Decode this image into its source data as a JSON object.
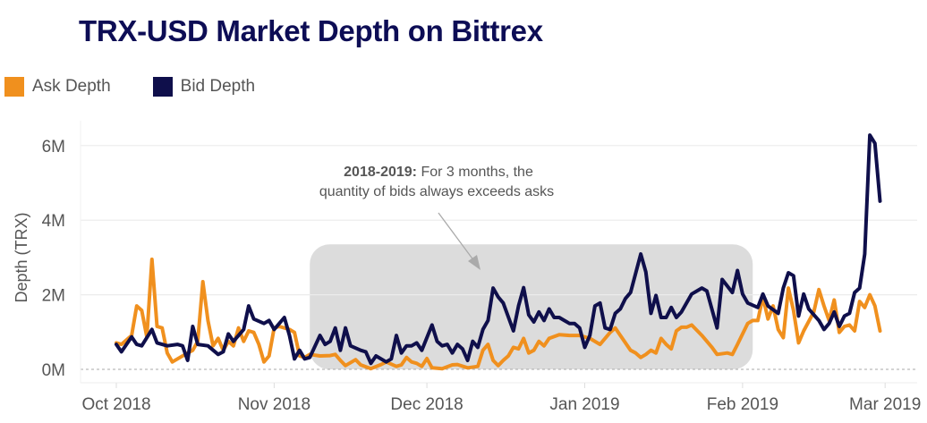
{
  "chart_data": {
    "type": "line",
    "title": "TRX-USD Market Depth on Bittrex",
    "xlabel": "",
    "ylabel": "Depth (TRX)",
    "ylim": [
      0,
      6.5
    ],
    "yunit": "M",
    "yticks": [
      0,
      2,
      4,
      6
    ],
    "ytick_labels": [
      "0M",
      "2M",
      "4M",
      "6M"
    ],
    "xticks": [
      "2018-10-01",
      "2018-11-01",
      "2018-12-01",
      "2019-01-01",
      "2019-02-01",
      "2019-03-01"
    ],
    "xtick_labels": [
      "Oct 2018",
      "Nov 2018",
      "Dec 2018",
      "Jan 2019",
      "Feb 2019",
      "Mar 2019"
    ],
    "grid": "horizontal",
    "legend_placement": "top-left",
    "annotation": {
      "bold": "2018-2019:",
      "line1": " For 3 months, the",
      "line2": "quantity of bids always exceeds asks",
      "highlight_start": "2018-11-08",
      "highlight_end": "2019-02-03",
      "highlight_top": 3.35
    },
    "series": [
      {
        "name": "Ask Depth",
        "color": "#f0901e",
        "points": [
          [
            "2018-10-01",
            0.71
          ],
          [
            "2018-10-02",
            0.67
          ],
          [
            "2018-10-04",
            0.91
          ],
          [
            "2018-10-05",
            1.7
          ],
          [
            "2018-10-06",
            1.58
          ],
          [
            "2018-10-07",
            0.87
          ],
          [
            "2018-10-08",
            2.95
          ],
          [
            "2018-10-09",
            1.15
          ],
          [
            "2018-10-10",
            1.11
          ],
          [
            "2018-10-11",
            0.44
          ],
          [
            "2018-10-12",
            0.2
          ],
          [
            "2018-10-15",
            0.44
          ],
          [
            "2018-10-16",
            0.51
          ],
          [
            "2018-10-17",
            0.75
          ],
          [
            "2018-10-18",
            2.35
          ],
          [
            "2018-10-19",
            1.31
          ],
          [
            "2018-10-20",
            0.63
          ],
          [
            "2018-10-21",
            0.83
          ],
          [
            "2018-10-22",
            0.51
          ],
          [
            "2018-10-23",
            0.75
          ],
          [
            "2018-10-24",
            0.63
          ],
          [
            "2018-10-25",
            1.11
          ],
          [
            "2018-10-26",
            0.75
          ],
          [
            "2018-10-27",
            1.03
          ],
          [
            "2018-10-28",
            0.99
          ],
          [
            "2018-10-29",
            0.67
          ],
          [
            "2018-10-30",
            0.2
          ],
          [
            "2018-10-31",
            0.36
          ],
          [
            "2018-11-01",
            1.11
          ],
          [
            "2018-11-02",
            1.15
          ],
          [
            "2018-11-04",
            1.07
          ],
          [
            "2018-11-05",
            0.99
          ],
          [
            "2018-11-06",
            0.36
          ],
          [
            "2018-11-07",
            0.32
          ],
          [
            "2018-11-08",
            0.4
          ],
          [
            "2018-11-10",
            0.36
          ],
          [
            "2018-11-12",
            0.37
          ],
          [
            "2018-11-13",
            0.4
          ],
          [
            "2018-11-14",
            0.24
          ],
          [
            "2018-11-15",
            0.1
          ],
          [
            "2018-11-17",
            0.26
          ],
          [
            "2018-11-18",
            0.12
          ],
          [
            "2018-11-20",
            0.02
          ],
          [
            "2018-11-22",
            0.13
          ],
          [
            "2018-11-23",
            0.2
          ],
          [
            "2018-11-25",
            0.08
          ],
          [
            "2018-11-26",
            0.12
          ],
          [
            "2018-11-27",
            0.32
          ],
          [
            "2018-11-28",
            0.2
          ],
          [
            "2018-11-29",
            0.16
          ],
          [
            "2018-11-30",
            0.08
          ],
          [
            "2018-12-01",
            0.29
          ],
          [
            "2018-12-02",
            0.04
          ],
          [
            "2018-12-04",
            0.02
          ],
          [
            "2018-12-06",
            0.12
          ],
          [
            "2018-12-07",
            0.13
          ],
          [
            "2018-12-09",
            0.04
          ],
          [
            "2018-12-11",
            0.08
          ],
          [
            "2018-12-12",
            0.51
          ],
          [
            "2018-12-13",
            0.67
          ],
          [
            "2018-12-14",
            0.24
          ],
          [
            "2018-12-15",
            0.1
          ],
          [
            "2018-12-16",
            0.24
          ],
          [
            "2018-12-17",
            0.36
          ],
          [
            "2018-12-18",
            0.59
          ],
          [
            "2018-12-19",
            0.55
          ],
          [
            "2018-12-20",
            0.83
          ],
          [
            "2018-12-21",
            0.44
          ],
          [
            "2018-12-22",
            0.51
          ],
          [
            "2018-12-23",
            0.75
          ],
          [
            "2018-12-24",
            0.63
          ],
          [
            "2018-12-25",
            0.83
          ],
          [
            "2018-12-27",
            0.93
          ],
          [
            "2018-12-29",
            0.91
          ],
          [
            "2018-12-31",
            0.91
          ],
          [
            "2019-01-02",
            0.83
          ],
          [
            "2019-01-04",
            0.67
          ],
          [
            "2019-01-06",
            0.99
          ],
          [
            "2019-01-07",
            1.11
          ],
          [
            "2019-01-08",
            0.91
          ],
          [
            "2019-01-10",
            0.51
          ],
          [
            "2019-01-11",
            0.44
          ],
          [
            "2019-01-12",
            0.32
          ],
          [
            "2019-01-13",
            0.4
          ],
          [
            "2019-01-14",
            0.51
          ],
          [
            "2019-01-15",
            0.44
          ],
          [
            "2019-01-16",
            0.83
          ],
          [
            "2019-01-17",
            0.67
          ],
          [
            "2019-01-18",
            0.55
          ],
          [
            "2019-01-19",
            1.03
          ],
          [
            "2019-01-20",
            1.13
          ],
          [
            "2019-01-21",
            1.13
          ],
          [
            "2019-01-22",
            1.19
          ],
          [
            "2019-01-24",
            0.91
          ],
          [
            "2019-01-26",
            0.59
          ],
          [
            "2019-01-27",
            0.4
          ],
          [
            "2019-01-29",
            0.44
          ],
          [
            "2019-01-30",
            0.4
          ],
          [
            "2019-01-31",
            0.67
          ],
          [
            "2019-02-02",
            1.23
          ],
          [
            "2019-02-03",
            1.31
          ],
          [
            "2019-02-04",
            1.31
          ],
          [
            "2019-02-05",
            1.94
          ],
          [
            "2019-02-06",
            1.35
          ],
          [
            "2019-02-07",
            1.7
          ],
          [
            "2019-02-08",
            1.07
          ],
          [
            "2019-02-09",
            0.85
          ],
          [
            "2019-02-10",
            2.18
          ],
          [
            "2019-02-11",
            1.58
          ],
          [
            "2019-02-12",
            0.71
          ],
          [
            "2019-02-13",
            1.03
          ],
          [
            "2019-02-15",
            1.54
          ],
          [
            "2019-02-16",
            2.14
          ],
          [
            "2019-02-17",
            1.7
          ],
          [
            "2019-02-18",
            1.31
          ],
          [
            "2019-02-19",
            1.86
          ],
          [
            "2019-02-20",
            0.99
          ],
          [
            "2019-02-21",
            1.15
          ],
          [
            "2019-02-22",
            1.19
          ],
          [
            "2019-02-23",
            1.03
          ],
          [
            "2019-02-24",
            1.82
          ],
          [
            "2019-02-25",
            1.66
          ],
          [
            "2019-02-26",
            2.0
          ],
          [
            "2019-02-27",
            1.7
          ],
          [
            "2019-02-28",
            1.03
          ]
        ]
      },
      {
        "name": "Bid Depth",
        "color": "#0f0f4b",
        "points": [
          [
            "2018-10-01",
            0.67
          ],
          [
            "2018-10-02",
            0.47
          ],
          [
            "2018-10-04",
            0.87
          ],
          [
            "2018-10-05",
            0.67
          ],
          [
            "2018-10-06",
            0.63
          ],
          [
            "2018-10-08",
            1.07
          ],
          [
            "2018-10-09",
            0.71
          ],
          [
            "2018-10-11",
            0.63
          ],
          [
            "2018-10-13",
            0.67
          ],
          [
            "2018-10-14",
            0.63
          ],
          [
            "2018-10-15",
            0.24
          ],
          [
            "2018-10-16",
            1.15
          ],
          [
            "2018-10-17",
            0.67
          ],
          [
            "2018-10-19",
            0.63
          ],
          [
            "2018-10-21",
            0.4
          ],
          [
            "2018-10-22",
            0.47
          ],
          [
            "2018-10-23",
            0.95
          ],
          [
            "2018-10-24",
            0.75
          ],
          [
            "2018-10-26",
            1.07
          ],
          [
            "2018-10-27",
            1.7
          ],
          [
            "2018-10-28",
            1.35
          ],
          [
            "2018-10-30",
            1.23
          ],
          [
            "2018-10-31",
            1.31
          ],
          [
            "2018-11-01",
            1.07
          ],
          [
            "2018-11-03",
            1.39
          ],
          [
            "2018-11-04",
            0.91
          ],
          [
            "2018-11-05",
            0.28
          ],
          [
            "2018-11-06",
            0.51
          ],
          [
            "2018-11-07",
            0.28
          ],
          [
            "2018-11-08",
            0.32
          ],
          [
            "2018-11-10",
            0.91
          ],
          [
            "2018-11-11",
            0.67
          ],
          [
            "2018-11-12",
            0.75
          ],
          [
            "2018-11-13",
            1.11
          ],
          [
            "2018-11-14",
            0.51
          ],
          [
            "2018-11-15",
            1.11
          ],
          [
            "2018-11-16",
            0.63
          ],
          [
            "2018-11-18",
            0.51
          ],
          [
            "2018-11-19",
            0.47
          ],
          [
            "2018-11-20",
            0.16
          ],
          [
            "2018-11-21",
            0.36
          ],
          [
            "2018-11-23",
            0.2
          ],
          [
            "2018-11-24",
            0.28
          ],
          [
            "2018-11-25",
            0.91
          ],
          [
            "2018-11-26",
            0.44
          ],
          [
            "2018-11-27",
            0.63
          ],
          [
            "2018-11-28",
            0.63
          ],
          [
            "2018-11-29",
            0.71
          ],
          [
            "2018-11-30",
            0.51
          ],
          [
            "2018-12-02",
            1.19
          ],
          [
            "2018-12-03",
            0.75
          ],
          [
            "2018-12-04",
            0.63
          ],
          [
            "2018-12-05",
            0.67
          ],
          [
            "2018-12-06",
            0.44
          ],
          [
            "2018-12-07",
            0.67
          ],
          [
            "2018-12-08",
            0.55
          ],
          [
            "2018-12-09",
            0.24
          ],
          [
            "2018-12-10",
            0.75
          ],
          [
            "2018-12-11",
            0.59
          ],
          [
            "2018-12-12",
            1.07
          ],
          [
            "2018-12-13",
            1.31
          ],
          [
            "2018-12-14",
            2.18
          ],
          [
            "2018-12-15",
            1.94
          ],
          [
            "2018-12-16",
            1.78
          ],
          [
            "2018-12-18",
            1.03
          ],
          [
            "2018-12-19",
            1.7
          ],
          [
            "2018-12-20",
            2.19
          ],
          [
            "2018-12-21",
            1.46
          ],
          [
            "2018-12-22",
            1.27
          ],
          [
            "2018-12-23",
            1.54
          ],
          [
            "2018-12-24",
            1.31
          ],
          [
            "2018-12-25",
            1.62
          ],
          [
            "2018-12-26",
            1.39
          ],
          [
            "2018-12-27",
            1.39
          ],
          [
            "2018-12-28",
            1.31
          ],
          [
            "2018-12-29",
            1.23
          ],
          [
            "2018-12-30",
            1.23
          ],
          [
            "2018-12-31",
            1.11
          ],
          [
            "2019-01-01",
            0.59
          ],
          [
            "2019-01-02",
            0.91
          ],
          [
            "2019-01-03",
            1.7
          ],
          [
            "2019-01-04",
            1.78
          ],
          [
            "2019-01-05",
            1.11
          ],
          [
            "2019-01-06",
            1.07
          ],
          [
            "2019-01-07",
            1.5
          ],
          [
            "2019-01-08",
            1.62
          ],
          [
            "2019-01-09",
            1.9
          ],
          [
            "2019-01-10",
            2.06
          ],
          [
            "2019-01-12",
            3.09
          ],
          [
            "2019-01-13",
            2.61
          ],
          [
            "2019-01-14",
            1.5
          ],
          [
            "2019-01-15",
            1.98
          ],
          [
            "2019-01-16",
            1.39
          ],
          [
            "2019-01-17",
            1.39
          ],
          [
            "2019-01-18",
            1.66
          ],
          [
            "2019-01-19",
            1.39
          ],
          [
            "2019-01-20",
            1.54
          ],
          [
            "2019-01-22",
            2.02
          ],
          [
            "2019-01-24",
            2.18
          ],
          [
            "2019-01-25",
            2.1
          ],
          [
            "2019-01-27",
            1.11
          ],
          [
            "2019-01-28",
            2.41
          ],
          [
            "2019-01-30",
            2.06
          ],
          [
            "2019-01-31",
            2.65
          ],
          [
            "2019-02-01",
            2.02
          ],
          [
            "2019-02-02",
            1.78
          ],
          [
            "2019-02-04",
            1.66
          ],
          [
            "2019-02-05",
            2.02
          ],
          [
            "2019-02-06",
            1.7
          ],
          [
            "2019-02-08",
            1.5
          ],
          [
            "2019-02-09",
            2.18
          ],
          [
            "2019-02-10",
            2.59
          ],
          [
            "2019-02-11",
            2.51
          ],
          [
            "2019-02-12",
            1.43
          ],
          [
            "2019-02-13",
            2.02
          ],
          [
            "2019-02-14",
            1.62
          ],
          [
            "2019-02-16",
            1.31
          ],
          [
            "2019-02-17",
            1.07
          ],
          [
            "2019-02-18",
            1.23
          ],
          [
            "2019-02-19",
            1.54
          ],
          [
            "2019-02-20",
            1.15
          ],
          [
            "2019-02-21",
            1.43
          ],
          [
            "2019-02-22",
            1.5
          ],
          [
            "2019-02-23",
            2.06
          ],
          [
            "2019-02-24",
            2.18
          ],
          [
            "2019-02-25",
            3.09
          ],
          [
            "2019-02-26",
            6.28
          ],
          [
            "2019-02-27",
            6.06
          ],
          [
            "2019-02-28",
            4.51
          ]
        ]
      }
    ]
  }
}
